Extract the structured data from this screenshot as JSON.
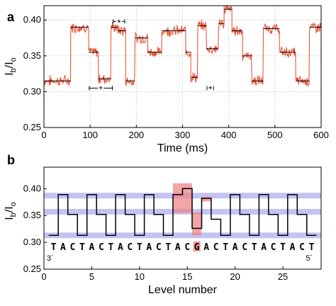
{
  "chart_data": [
    {
      "panel_label": "a",
      "type": "line",
      "xlabel": "Time (ms)",
      "ylabel_main": "I",
      "ylabel_sub1": "b",
      "ylabel_mid": "/I",
      "ylabel_sub2": "o",
      "xlim": [
        0,
        600
      ],
      "ylim": [
        0.25,
        0.42
      ],
      "xticks": [
        0,
        100,
        200,
        300,
        400,
        500,
        600
      ],
      "yticks": [
        0.25,
        0.3,
        0.35,
        0.4
      ],
      "ytick_labels": [
        "0.25",
        "0.30",
        "0.35",
        "0.40"
      ],
      "grid": "dotted",
      "colors": {
        "trace": "#e8482a",
        "levels": "#000000"
      },
      "levels": [
        {
          "x0": 0,
          "x1": 58,
          "y": 0.315
        },
        {
          "x0": 58,
          "x1": 97,
          "y": 0.39
        },
        {
          "x0": 97,
          "x1": 118,
          "y": 0.355
        },
        {
          "x0": 118,
          "x1": 145,
          "y": 0.318
        },
        {
          "x0": 145,
          "x1": 160,
          "y": 0.39
        },
        {
          "x0": 160,
          "x1": 177,
          "y": 0.385
        },
        {
          "x0": 177,
          "x1": 197,
          "y": 0.315
        },
        {
          "x0": 197,
          "x1": 225,
          "y": 0.375
        },
        {
          "x0": 225,
          "x1": 255,
          "y": 0.355
        },
        {
          "x0": 255,
          "x1": 307,
          "y": 0.385
        },
        {
          "x0": 307,
          "x1": 318,
          "y": 0.355
        },
        {
          "x0": 318,
          "x1": 333,
          "y": 0.32
        },
        {
          "x0": 333,
          "x1": 352,
          "y": 0.392
        },
        {
          "x0": 352,
          "x1": 378,
          "y": 0.36
        },
        {
          "x0": 378,
          "x1": 390,
          "y": 0.395
        },
        {
          "x0": 390,
          "x1": 407,
          "y": 0.415
        },
        {
          "x0": 407,
          "x1": 430,
          "y": 0.385
        },
        {
          "x0": 430,
          "x1": 450,
          "y": 0.35
        },
        {
          "x0": 450,
          "x1": 475,
          "y": 0.315
        },
        {
          "x0": 475,
          "x1": 510,
          "y": 0.388
        },
        {
          "x0": 510,
          "x1": 545,
          "y": 0.355
        },
        {
          "x0": 545,
          "x1": 575,
          "y": 0.315
        },
        {
          "x0": 575,
          "x1": 600,
          "y": 0.39
        }
      ],
      "annotations": [
        {
          "text": "*",
          "x0": 98,
          "x1": 148,
          "y": 0.305
        },
        {
          "text": "*",
          "x0": 150,
          "x1": 175,
          "y": 0.398
        },
        {
          "text": "*",
          "x0": 353,
          "x1": 367,
          "y": 0.305
        }
      ]
    },
    {
      "panel_label": "b",
      "type": "line",
      "xlabel": "Level number",
      "ylabel_main": "I",
      "ylabel_sub1": "b",
      "ylabel_mid": "/I",
      "ylabel_sub2": "o",
      "xlim": [
        0,
        29
      ],
      "ylim": [
        0.25,
        0.44
      ],
      "xticks": [
        0,
        5,
        10,
        15,
        20,
        25
      ],
      "yticks": [
        0.25,
        0.3,
        0.35,
        0.4
      ],
      "ytick_labels": [
        "0.25",
        "0.30",
        "0.35",
        "0.40"
      ],
      "colors": {
        "bands": "#b8b8f0",
        "highlight": "#f08080",
        "trace": "#000000"
      },
      "bands": [
        0.387,
        0.357,
        0.313
      ],
      "steps": [
        0.313,
        0.389,
        0.352,
        0.313,
        0.389,
        0.352,
        0.313,
        0.389,
        0.352,
        0.313,
        0.389,
        0.352,
        0.313,
        0.389,
        0.4,
        0.326,
        0.382,
        0.343,
        0.313,
        0.389,
        0.352,
        0.313,
        0.389,
        0.352,
        0.313,
        0.389,
        0.352,
        0.313
      ],
      "highlights": [
        {
          "x0": 13.5,
          "x1": 15.5,
          "y0": 0.355,
          "y1": 0.41
        },
        {
          "x0": 15.5,
          "x1": 16.5,
          "y0": 0.313,
          "y1": 0.356
        },
        {
          "x0": 16.5,
          "x1": 17.5,
          "y0": 0.376,
          "y1": 0.385
        }
      ],
      "sequence": [
        "T",
        "A",
        "C",
        "T",
        "A",
        "C",
        "T",
        "A",
        "C",
        "T",
        "A",
        "C",
        "T",
        "A",
        "C",
        "G",
        "A",
        "C",
        "T",
        "A",
        "C",
        "T",
        "A",
        "C",
        "T",
        "A",
        "C",
        "T"
      ],
      "highlight_letter_index": 15,
      "end_label_left": "3´",
      "end_label_right": "5´"
    }
  ]
}
